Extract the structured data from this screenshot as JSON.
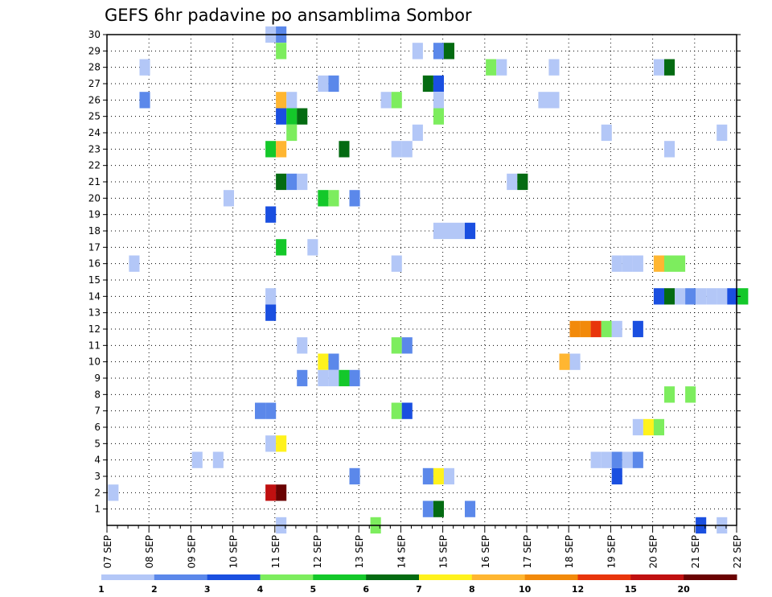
{
  "chart_data": {
    "type": "heatmap",
    "title": "GEFS 6hr padavine po ansamblima Sombor",
    "xlabel": "",
    "ylabel": "",
    "x_tick_labels": [
      "07 SEP",
      "08 SEP",
      "09 SEP",
      "10 SEP",
      "11 SEP",
      "12 SEP",
      "13 SEP",
      "14 SEP",
      "15 SEP",
      "16 SEP",
      "17 SEP",
      "18 SEP",
      "19 SEP",
      "20 SEP",
      "21 SEP",
      "22 SEP"
    ],
    "y_tick_labels": [
      "1",
      "2",
      "3",
      "4",
      "5",
      "6",
      "7",
      "8",
      "9",
      "10",
      "11",
      "12",
      "13",
      "14",
      "15",
      "16",
      "17",
      "18",
      "19",
      "20",
      "21",
      "22",
      "23",
      "24",
      "25",
      "26",
      "27",
      "28",
      "29",
      "30"
    ],
    "x_range_steps": [
      0,
      60
    ],
    "y_range": [
      0,
      30
    ],
    "grid": true,
    "colorbar": {
      "labels": [
        "1",
        "2",
        "3",
        "4",
        "5",
        "6",
        "7",
        "8",
        "10",
        "12",
        "15",
        "20"
      ],
      "colors": [
        "#b3c7f7",
        "#5b88ea",
        "#1a4fe0",
        "#7ded5e",
        "#14c82a",
        "#046b12",
        "#fff21c",
        "#ffb631",
        "#f28a0a",
        "#e8350c",
        "#c01010",
        "#6a0202"
      ]
    },
    "cells": [
      [
        30,
        15.6,
        0
      ],
      [
        30,
        16.6,
        1
      ],
      [
        29,
        16.6,
        3
      ],
      [
        29,
        29.6,
        0
      ],
      [
        29,
        31.6,
        1
      ],
      [
        29,
        32.6,
        5
      ],
      [
        28,
        3.6,
        0
      ],
      [
        28,
        36.6,
        3
      ],
      [
        28,
        37.6,
        0
      ],
      [
        28,
        42.6,
        0
      ],
      [
        28,
        52.6,
        0
      ],
      [
        28,
        53.6,
        5
      ],
      [
        27,
        20.6,
        0
      ],
      [
        27,
        21.6,
        1
      ],
      [
        27,
        30.6,
        5
      ],
      [
        27,
        31.6,
        2
      ],
      [
        26,
        3.6,
        1
      ],
      [
        26,
        16.6,
        7
      ],
      [
        26,
        17.6,
        0
      ],
      [
        26,
        26.6,
        0
      ],
      [
        26,
        27.6,
        3
      ],
      [
        26,
        31.6,
        0
      ],
      [
        26,
        41.6,
        0
      ],
      [
        26,
        42.6,
        0
      ],
      [
        25,
        16.6,
        2
      ],
      [
        25,
        17.6,
        4
      ],
      [
        25,
        18.6,
        5
      ],
      [
        25,
        31.6,
        3
      ],
      [
        24,
        17.6,
        3
      ],
      [
        24,
        29.6,
        0
      ],
      [
        24,
        47.6,
        0
      ],
      [
        24,
        58.6,
        0
      ],
      [
        23,
        15.6,
        4
      ],
      [
        23,
        16.6,
        7
      ],
      [
        23,
        22.6,
        5
      ],
      [
        23,
        27.6,
        0
      ],
      [
        23,
        28.6,
        0
      ],
      [
        23,
        53.6,
        0
      ],
      [
        21,
        16.6,
        5
      ],
      [
        21,
        17.6,
        1
      ],
      [
        21,
        18.6,
        0
      ],
      [
        21,
        38.6,
        0
      ],
      [
        21,
        39.6,
        5
      ],
      [
        20,
        11.6,
        0
      ],
      [
        20,
        20.6,
        4
      ],
      [
        20,
        21.6,
        3
      ],
      [
        20,
        23.6,
        1
      ],
      [
        19,
        15.6,
        2
      ],
      [
        18,
        31.6,
        0
      ],
      [
        18,
        32.6,
        0
      ],
      [
        18,
        33.6,
        0
      ],
      [
        18,
        34.6,
        2
      ],
      [
        17,
        16.6,
        4
      ],
      [
        17,
        19.6,
        0
      ],
      [
        16,
        2.6,
        0
      ],
      [
        16,
        27.6,
        0
      ],
      [
        16,
        48.6,
        0
      ],
      [
        16,
        49.6,
        0
      ],
      [
        16,
        50.6,
        0
      ],
      [
        16,
        52.6,
        7
      ],
      [
        16,
        53.6,
        3
      ],
      [
        16,
        54.6,
        3
      ],
      [
        14,
        15.6,
        0
      ],
      [
        14,
        52.6,
        2
      ],
      [
        14,
        53.6,
        5
      ],
      [
        14,
        54.6,
        0
      ],
      [
        14,
        55.6,
        1
      ],
      [
        14,
        56.6,
        0
      ],
      [
        14,
        57.6,
        0
      ],
      [
        14,
        58.6,
        0
      ],
      [
        14,
        59.6,
        2
      ],
      [
        14,
        60.6,
        4
      ],
      [
        13,
        15.6,
        2
      ],
      [
        12,
        44.6,
        8
      ],
      [
        12,
        45.6,
        8
      ],
      [
        12,
        46.6,
        9
      ],
      [
        12,
        47.6,
        3
      ],
      [
        12,
        48.6,
        0
      ],
      [
        12,
        50.6,
        2
      ],
      [
        11,
        18.6,
        0
      ],
      [
        11,
        27.6,
        3
      ],
      [
        11,
        28.6,
        1
      ],
      [
        10,
        20.6,
        6
      ],
      [
        10,
        21.6,
        1
      ],
      [
        10,
        43.6,
        7
      ],
      [
        10,
        44.6,
        0
      ],
      [
        9,
        18.6,
        1
      ],
      [
        9,
        20.6,
        0
      ],
      [
        9,
        21.6,
        0
      ],
      [
        9,
        22.6,
        4
      ],
      [
        9,
        23.6,
        1
      ],
      [
        8,
        53.6,
        3
      ],
      [
        8,
        55.6,
        3
      ],
      [
        7,
        14.6,
        1
      ],
      [
        7,
        15.6,
        1
      ],
      [
        7,
        27.6,
        3
      ],
      [
        7,
        28.6,
        2
      ],
      [
        6,
        50.6,
        0
      ],
      [
        6,
        51.6,
        6
      ],
      [
        6,
        52.6,
        3
      ],
      [
        5,
        15.6,
        0
      ],
      [
        5,
        16.6,
        6
      ],
      [
        4,
        8.6,
        0
      ],
      [
        4,
        10.6,
        0
      ],
      [
        4,
        46.6,
        0
      ],
      [
        4,
        47.6,
        0
      ],
      [
        4,
        48.6,
        1
      ],
      [
        4,
        49.6,
        0
      ],
      [
        4,
        50.6,
        1
      ],
      [
        3,
        23.6,
        1
      ],
      [
        3,
        30.6,
        1
      ],
      [
        3,
        31.6,
        6
      ],
      [
        3,
        32.6,
        0
      ],
      [
        3,
        48.6,
        2
      ],
      [
        2,
        0.6,
        0
      ],
      [
        2,
        15.6,
        10
      ],
      [
        2,
        16.6,
        11
      ],
      [
        1,
        30.6,
        1
      ],
      [
        1,
        31.6,
        5
      ],
      [
        1,
        34.6,
        1
      ],
      [
        0,
        16.6,
        0
      ],
      [
        0,
        25.6,
        3
      ],
      [
        0,
        56.6,
        2
      ],
      [
        0,
        58.6,
        0
      ]
    ]
  }
}
